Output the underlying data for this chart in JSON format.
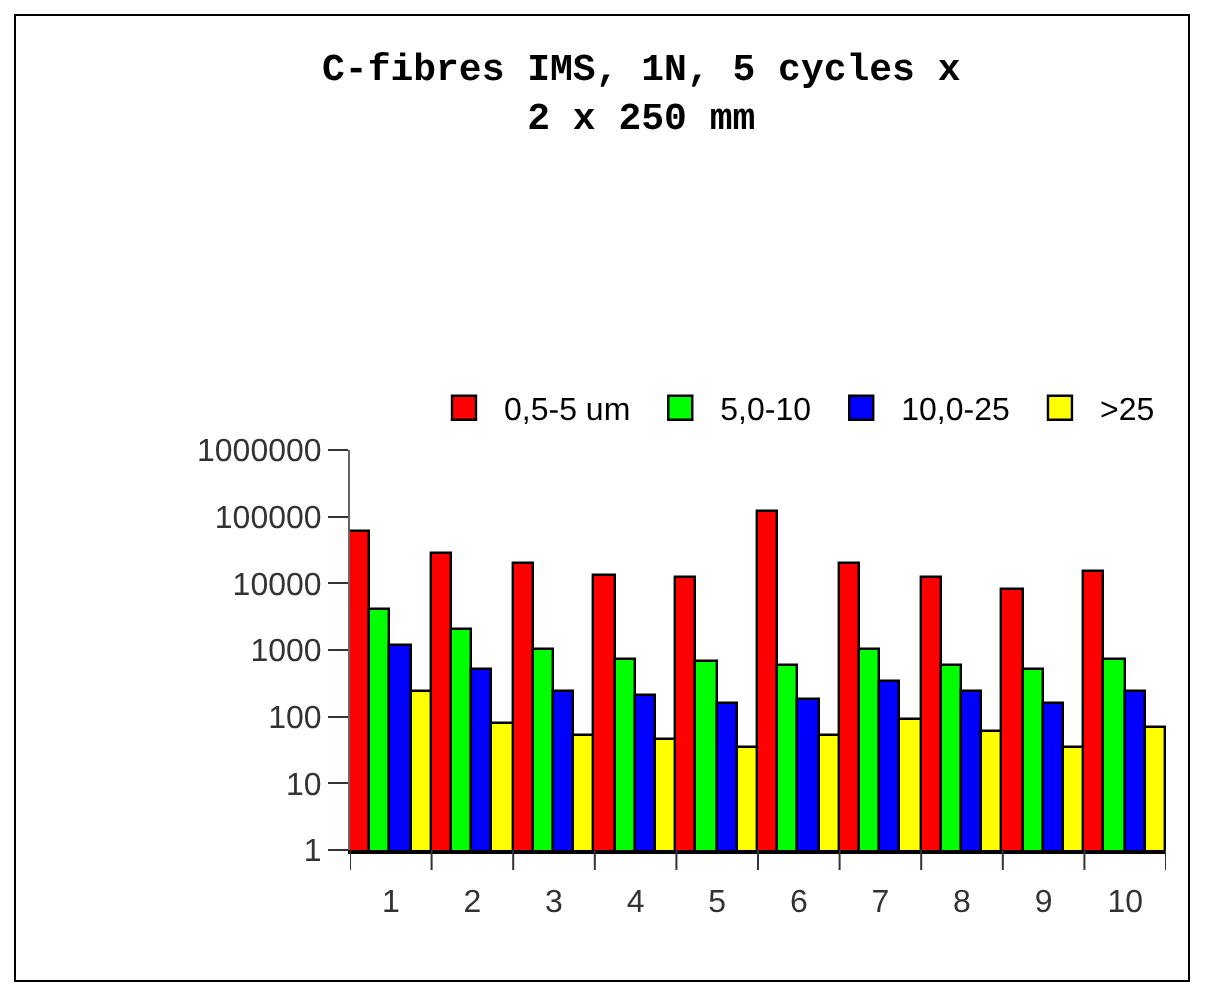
{
  "chart_data": {
    "type": "bar",
    "title": "C-fibres IMS, 1N, 5 cycles x\n2 x 250 mm",
    "categories": [
      "1",
      "2",
      "3",
      "4",
      "5",
      "6",
      "7",
      "8",
      "9",
      "10"
    ],
    "series": [
      {
        "name": "0,5-5 um",
        "color": "#ff0000",
        "values": [
          60000,
          27000,
          20000,
          13000,
          12000,
          120000,
          20000,
          12000,
          7800,
          15000
        ]
      },
      {
        "name": "5,0-10",
        "color": "#00ff00",
        "values": [
          4000,
          2000,
          1000,
          730,
          650,
          570,
          1000,
          570,
          490,
          730
        ]
      },
      {
        "name": "10,0-25",
        "color": "#0000ff",
        "values": [
          1150,
          490,
          235,
          210,
          160,
          180,
          330,
          235,
          160,
          235
        ]
      },
      {
        "name": ">25",
        "color": "#ffff00",
        "values": [
          235,
          76,
          52,
          44,
          33,
          52,
          89,
          59,
          33,
          66
        ]
      }
    ],
    "log": true,
    "ylim": [
      1,
      1000000
    ],
    "yticks": [
      1,
      10,
      100,
      1000,
      10000,
      100000,
      1000000
    ],
    "grid": false,
    "legend": "top right"
  }
}
